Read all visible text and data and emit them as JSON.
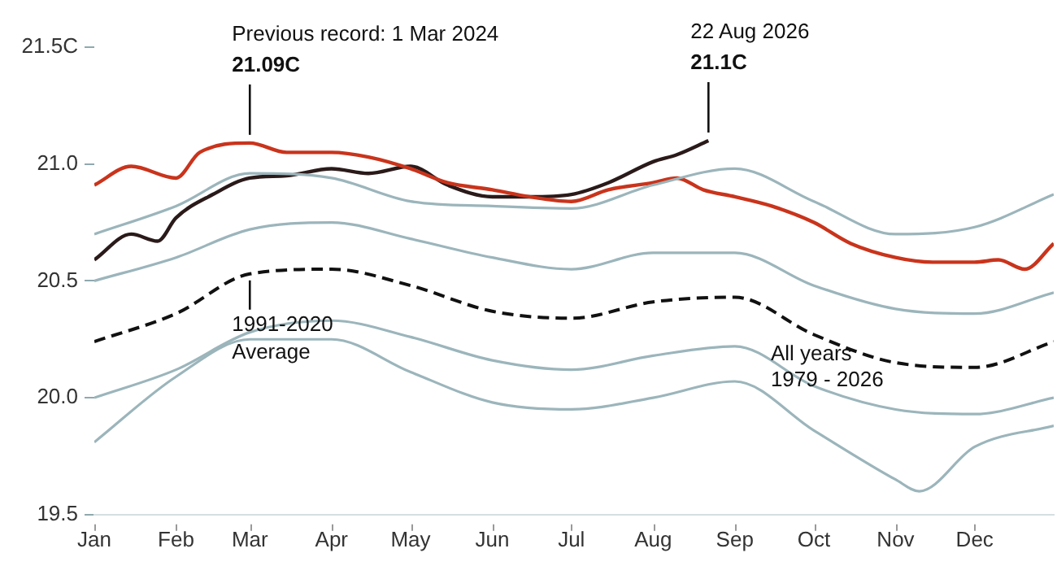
{
  "chart_data": {
    "type": "line",
    "marker": "none",
    "grid": false,
    "legend": false,
    "xlim": [
      "--01-01",
      "--12-31"
    ],
    "xticks": [
      {
        "value": "--01-01",
        "label": "Jan"
      },
      {
        "value": "--02-01",
        "label": "Feb"
      },
      {
        "value": "--03-01",
        "label": "Mar"
      },
      {
        "value": "--04-01",
        "label": "Apr"
      },
      {
        "value": "--05-01",
        "label": "May"
      },
      {
        "value": "--06-01",
        "label": "Jun"
      },
      {
        "value": "--07-01",
        "label": "Jul"
      },
      {
        "value": "--08-01",
        "label": "Aug"
      },
      {
        "value": "--09-01",
        "label": "Sep"
      },
      {
        "value": "--10-01",
        "label": "Oct"
      },
      {
        "value": "--11-01",
        "label": "Nov"
      },
      {
        "value": "--12-01",
        "label": "Dec"
      }
    ],
    "ylim": [
      19.5,
      21.5
    ],
    "yticks": [
      19.5,
      {
        "value": 20,
        "label": "20.0"
      },
      20.5,
      {
        "value": 21,
        "label": "21.0"
      },
      {
        "value": 21.5,
        "label": "21.5C"
      }
    ],
    "series": [
      {
        "color": "#9bb5bb",
        "x": [
          "--01-01",
          "--02-01",
          "--03-01",
          "--04-01",
          "--05-01",
          "--06-01",
          "--07-01",
          "--08-01",
          "--09-01",
          "--10-01",
          "--11-01",
          "--12-01",
          "--12-31"
        ],
        "values": [
          20.7,
          20.82,
          20.96,
          20.94,
          20.84,
          20.82,
          20.81,
          20.91,
          20.98,
          20.84,
          20.7,
          20.73,
          20.87
        ]
      },
      {
        "color": "#9bb5bb",
        "x": [
          "--01-01",
          "--02-01",
          "--03-01",
          "--04-01",
          "--05-01",
          "--06-01",
          "--07-01",
          "--08-01",
          "--09-01",
          "--10-01",
          "--11-01",
          "--12-01",
          "--12-31"
        ],
        "values": [
          20.5,
          20.6,
          20.72,
          20.75,
          20.68,
          20.6,
          20.55,
          20.62,
          20.62,
          20.48,
          20.38,
          20.36,
          20.45
        ]
      },
      {
        "color": "#9bb5bb",
        "x": [
          "--01-01",
          "--02-01",
          "--03-01",
          "--04-01",
          "--05-01",
          "--06-01",
          "--07-01",
          "--08-01",
          "--09-01",
          "--10-01",
          "--11-01",
          "--12-01",
          "--12-31"
        ],
        "values": [
          20.0,
          20.12,
          20.28,
          20.33,
          20.26,
          20.16,
          20.12,
          20.18,
          20.22,
          20.05,
          19.95,
          19.93,
          20.0
        ]
      },
      {
        "color": "#9bb5bb",
        "x": [
          "--01-01",
          "--02-01",
          "--03-01",
          "--04-01",
          "--05-01",
          "--06-01",
          "--07-01",
          "--08-01",
          "--09-01",
          "--10-01",
          "--11-01",
          "--11-10",
          "--12-01",
          "--12-31"
        ],
        "values": [
          19.81,
          20.09,
          20.25,
          20.25,
          20.11,
          19.98,
          19.95,
          20.0,
          20.07,
          19.86,
          19.65,
          19.6,
          19.79,
          19.88
        ]
      },
      {
        "color": "#111111",
        "line_style": "dashed",
        "x": [
          "--01-01",
          "--02-01",
          "--03-01",
          "--04-01",
          "--05-01",
          "--06-01",
          "--07-01",
          "--08-01",
          "--09-01",
          "--10-01",
          "--11-01",
          "--12-01",
          "--12-31"
        ],
        "values": [
          20.24,
          20.36,
          20.53,
          20.55,
          20.48,
          20.37,
          20.34,
          20.41,
          20.43,
          20.27,
          20.15,
          20.13,
          20.24
        ]
      },
      {
        "color": "#c9341c",
        "x": [
          "--01-01",
          "--01-15",
          "--02-01",
          "--02-10",
          "--03-01",
          "--03-15",
          "--04-01",
          "--04-15",
          "--05-01",
          "--05-15",
          "--06-01",
          "--06-15",
          "--07-01",
          "--07-15",
          "--08-01",
          "--08-10",
          "--08-20",
          "--09-01",
          "--09-15",
          "--10-01",
          "--10-15",
          "--11-01",
          "--11-15",
          "--12-01",
          "--12-10",
          "--12-20",
          "--12-31"
        ],
        "values": [
          20.91,
          20.99,
          20.94,
          21.05,
          21.09,
          21.05,
          21.05,
          21.03,
          20.98,
          20.92,
          20.89,
          20.86,
          20.84,
          20.89,
          20.92,
          20.94,
          20.89,
          20.86,
          20.82,
          20.75,
          20.66,
          20.6,
          20.58,
          20.58,
          20.59,
          20.55,
          20.66
        ]
      },
      {
        "color": "#2b1a1a",
        "x": [
          "--01-01",
          "--01-15",
          "--01-25",
          "--02-01",
          "--02-15",
          "--03-01",
          "--03-15",
          "--04-01",
          "--04-15",
          "--05-01",
          "--05-15",
          "--06-01",
          "--06-15",
          "--07-01",
          "--07-15",
          "--08-01",
          "--08-10",
          "--08-22"
        ],
        "values": [
          20.59,
          20.7,
          20.67,
          20.77,
          20.87,
          20.94,
          20.95,
          20.98,
          20.96,
          20.99,
          20.91,
          20.86,
          20.86,
          20.87,
          20.92,
          21.01,
          21.04,
          21.1
        ]
      }
    ],
    "annotations": [
      {
        "text": "Previous record: 1 Mar 2024\n21.09C",
        "x": "--03-01",
        "y": 21.09
      },
      {
        "text": "22 Aug 2026\n21.1C",
        "x": "--08-22",
        "y": 21.1
      },
      {
        "text": "1991-2020\nAverage",
        "x": "--03-01",
        "y": 20.53
      },
      "All years\n1979 - 2026"
    ]
  }
}
